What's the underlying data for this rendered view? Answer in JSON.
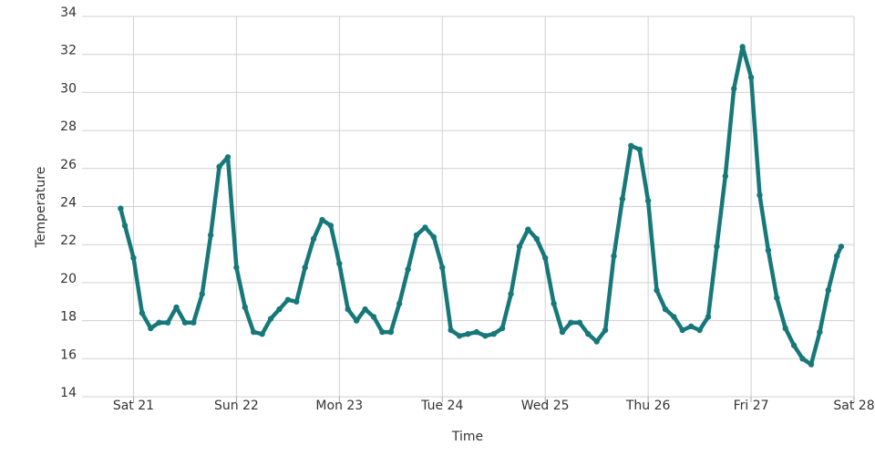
{
  "chart_data": {
    "type": "line",
    "x_label": "Time",
    "y_label": "Temperature",
    "x": [
      20.875,
      20.9167,
      21,
      21.0833,
      21.1667,
      21.25,
      21.3333,
      21.4167,
      21.5,
      21.5833,
      21.6667,
      21.75,
      21.8333,
      21.9167,
      22,
      22.0833,
      22.1667,
      22.25,
      22.3333,
      22.4167,
      22.5,
      22.5833,
      22.6667,
      22.75,
      22.8333,
      22.9167,
      23,
      23.0833,
      23.1667,
      23.25,
      23.3333,
      23.4167,
      23.5,
      23.5833,
      23.6667,
      23.75,
      23.8333,
      23.9167,
      24,
      24.0833,
      24.1667,
      24.25,
      24.3333,
      24.4167,
      24.5,
      24.5833,
      24.6667,
      24.75,
      24.8333,
      24.9167,
      25,
      25.0833,
      25.1667,
      25.25,
      25.3333,
      25.4167,
      25.5,
      25.5833,
      25.6667,
      25.75,
      25.8333,
      25.9167,
      26,
      26.0833,
      26.1667,
      26.25,
      26.3333,
      26.4167,
      26.5,
      26.5833,
      26.6667,
      26.75,
      26.8333,
      26.9167,
      27,
      27.0833,
      27.1667,
      27.25,
      27.3333,
      27.4167,
      27.5,
      27.5833,
      27.6667,
      27.75,
      27.8333,
      27.875
    ],
    "series": [
      {
        "name": "Temperature",
        "color": "#17787a",
        "values": [
          23.9,
          23.0,
          21.3,
          18.4,
          17.6,
          17.9,
          17.9,
          18.7,
          17.9,
          17.9,
          19.4,
          22.5,
          26.1,
          26.6,
          20.8,
          18.7,
          17.4,
          17.3,
          18.1,
          18.6,
          19.1,
          19.0,
          20.8,
          22.3,
          23.3,
          23.0,
          21.0,
          18.6,
          18.0,
          18.6,
          18.2,
          17.4,
          17.4,
          18.9,
          20.7,
          22.5,
          22.9,
          22.4,
          20.8,
          17.5,
          17.2,
          17.3,
          17.4,
          17.2,
          17.3,
          17.6,
          19.4,
          21.9,
          22.8,
          22.3,
          21.3,
          18.9,
          17.4,
          17.9,
          17.9,
          17.3,
          16.9,
          17.5,
          21.4,
          24.4,
          27.2,
          27.0,
          24.3,
          19.6,
          18.6,
          18.2,
          17.5,
          17.7,
          17.5,
          18.2,
          21.9,
          25.6,
          30.2,
          32.4,
          30.8,
          24.6,
          21.7,
          19.2,
          17.6,
          16.7,
          16.0,
          15.7,
          17.4,
          19.6,
          21.4,
          21.9
        ]
      }
    ],
    "xlim": [
      20.5,
      28
    ],
    "xticks": [
      {
        "value": 21,
        "label": "Sat 21"
      },
      {
        "value": 22,
        "label": "Sun 22"
      },
      {
        "value": 23,
        "label": "Mon 23"
      },
      {
        "value": 24,
        "label": "Tue 24"
      },
      {
        "value": 25,
        "label": "Wed 25"
      },
      {
        "value": 26,
        "label": "Thu 26"
      },
      {
        "value": 27,
        "label": "Fri 27"
      },
      {
        "value": 28,
        "label": "Sat 28"
      }
    ],
    "ylim": [
      14,
      34
    ],
    "yticks": [
      14,
      16,
      18,
      20,
      22,
      24,
      26,
      28,
      30,
      32,
      34
    ],
    "grid": true
  }
}
